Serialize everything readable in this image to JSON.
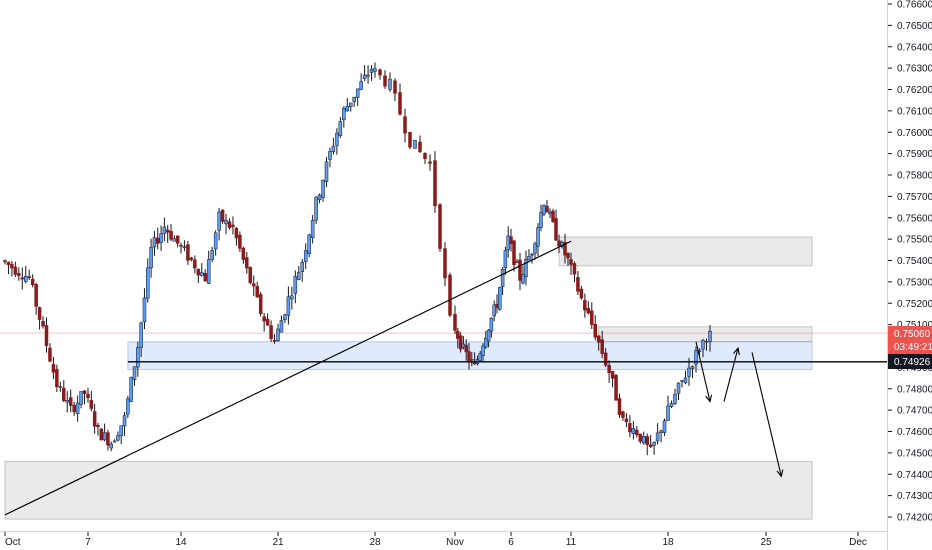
{
  "chart_data": {
    "type": "candlestick",
    "title": "",
    "xlabel": "",
    "ylabel": "",
    "ylim": [
      0.7417,
      0.7666
    ],
    "grid": false,
    "legend": "none",
    "y_ticks": [
      "0.76600",
      "0.76500",
      "0.76400",
      "0.76300",
      "0.76200",
      "0.76100",
      "0.76000",
      "0.75900",
      "0.75800",
      "0.75700",
      "0.75600",
      "0.75500",
      "0.75400",
      "0.75300",
      "0.75200",
      "0.75100",
      "0.75000",
      "0.74900",
      "0.74800",
      "0.74700",
      "0.74600",
      "0.74500",
      "0.74400",
      "0.74300",
      "0.74200"
    ],
    "x_ticks": [
      "Oct",
      "7",
      "14",
      "21",
      "28",
      "Nov",
      "6",
      "11",
      "18",
      "25",
      "Dec"
    ],
    "colors": {
      "up": "#5b9cf6",
      "up_border": "#131722",
      "down": "#8b1a1a",
      "zone_blue": "#3d7bf5",
      "zone_grey": "#b0b0b0",
      "price_badge": "#ef5350",
      "level_badge": "#131722",
      "line": "#000000"
    },
    "price_badge": {
      "price": "0.75060",
      "countdown": "03:49:21"
    },
    "level_badge": {
      "price": "0.74926"
    },
    "zones": [
      {
        "name": "upper-supply-zone",
        "y_from": 0.75375,
        "y_to": 0.7551,
        "x_from": "Nov 10",
        "x_to": "Nov 28"
      },
      {
        "name": "blue-demand-zone",
        "y_from": 0.7489,
        "y_to": 0.7502,
        "x_from": "Oct 10",
        "x_to": "Nov 28"
      },
      {
        "name": "upper-grey-box",
        "y_from": 0.7502,
        "y_to": 0.7509,
        "x_from": "Nov 13",
        "x_to": "Nov 28"
      },
      {
        "name": "lower-demand-zone",
        "y_from": 0.7419,
        "y_to": 0.7446,
        "x_from": "Oct 1",
        "x_to": "Nov 28"
      }
    ],
    "horizontal_line": {
      "price": 0.74926,
      "x_from": "Oct 10",
      "x_to": "Dec"
    },
    "trendline": {
      "from": {
        "date": "Oct 1",
        "price": 0.7421
      },
      "to": {
        "date": "Nov 11",
        "price": 0.7549
      }
    },
    "arrows": [
      {
        "from": {
          "date": "Nov 20",
          "price": 0.7502
        },
        "to": {
          "date": "Nov 21",
          "price": 0.7474
        }
      },
      {
        "from": {
          "date": "Nov 22",
          "price": 0.7474
        },
        "to": {
          "date": "Nov 23",
          "price": 0.7499
        }
      },
      {
        "from": {
          "date": "Nov 24",
          "price": 0.7497
        },
        "to": {
          "date": "Nov 26",
          "price": 0.7439
        }
      }
    ]
  }
}
